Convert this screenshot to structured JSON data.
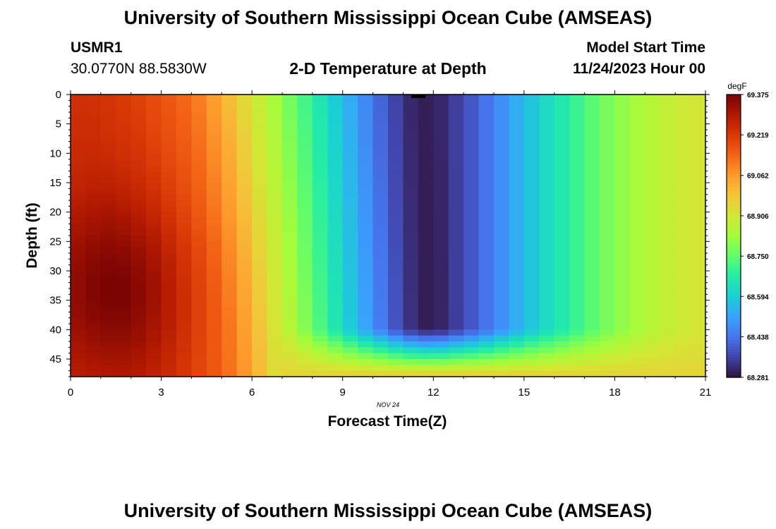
{
  "header": {
    "title": "University of Southern Mississippi Ocean Cube (AMSEAS)",
    "station_id": "USMR1",
    "coords": "30.0770N  88.5830W",
    "plot_title": "2-D Temperature at Depth",
    "model_start_label": "Model Start Time",
    "model_start_date": "11/24/2023 Hour 00"
  },
  "footer": {
    "title": "University of Southern Mississippi Ocean Cube (AMSEAS)"
  },
  "chart_data": {
    "type": "heatmap",
    "title": "2-D Temperature at Depth",
    "xlabel": "Forecast Time(Z)",
    "ylabel": "Depth (ft)",
    "date_annotation": "NOV 24",
    "xlim": [
      0,
      21
    ],
    "ylim": [
      0,
      48
    ],
    "x_ticks": [
      0,
      3,
      6,
      9,
      12,
      15,
      18,
      21
    ],
    "x_tick_labels": [
      "0",
      "3",
      "6",
      "9",
      "12",
      "15",
      "18",
      "21"
    ],
    "y_ticks": [
      0,
      5,
      10,
      15,
      20,
      25,
      30,
      35,
      40,
      45
    ],
    "y_tick_labels": [
      "0",
      "5",
      "10",
      "15",
      "20",
      "25",
      "30",
      "35",
      "40",
      "45"
    ],
    "colorbar": {
      "units": "degF",
      "range": [
        68.281,
        69.375
      ],
      "tick_values": [
        69.375,
        69.219,
        69.062,
        68.906,
        68.75,
        68.594,
        68.438,
        68.281
      ],
      "tick_labels": [
        "69.375",
        "69.219",
        "69.062",
        "68.906",
        "68.750",
        "68.594",
        "68.438",
        "68.281"
      ],
      "colors": [
        "#30123b",
        "#4145ab",
        "#4675ed",
        "#39a2fc",
        "#1bcfd4",
        "#24eca6",
        "#61fc6c",
        "#a4fc3b",
        "#d1e834",
        "#f3c63a",
        "#fe9b2d",
        "#f36315",
        "#d93806",
        "#b11901",
        "#7a0402"
      ]
    },
    "grid": {
      "x_values": [
        0,
        0.5,
        1,
        1.5,
        2,
        2.5,
        3,
        3.5,
        4,
        4.5,
        5,
        5.5,
        6,
        6.5,
        7,
        7.5,
        8,
        8.5,
        9,
        9.5,
        10,
        10.5,
        11,
        11.5,
        12,
        12.5,
        13,
        13.5,
        14,
        14.5,
        15,
        15.5,
        16,
        16.5,
        17,
        17.5,
        18,
        18.5,
        19,
        19.5,
        20,
        20.5
      ],
      "surface_temps_degF": [
        69.24,
        69.24,
        69.23,
        69.22,
        69.21,
        69.19,
        69.17,
        69.15,
        69.12,
        69.08,
        69.03,
        68.97,
        68.91,
        68.86,
        68.8,
        68.74,
        68.68,
        68.62,
        68.56,
        68.5,
        68.44,
        68.38,
        68.33,
        68.3,
        68.3,
        68.33,
        68.37,
        68.41,
        68.46,
        68.51,
        68.56,
        68.6,
        68.64,
        68.68,
        68.72,
        68.76,
        68.79,
        68.82,
        68.85,
        68.87,
        68.89,
        68.91
      ],
      "mid_depth_max_degF": 69.375,
      "mid_depth_max_location": [
        1.5,
        33
      ],
      "bottom_layer_temp_degF": 68.95
    }
  }
}
